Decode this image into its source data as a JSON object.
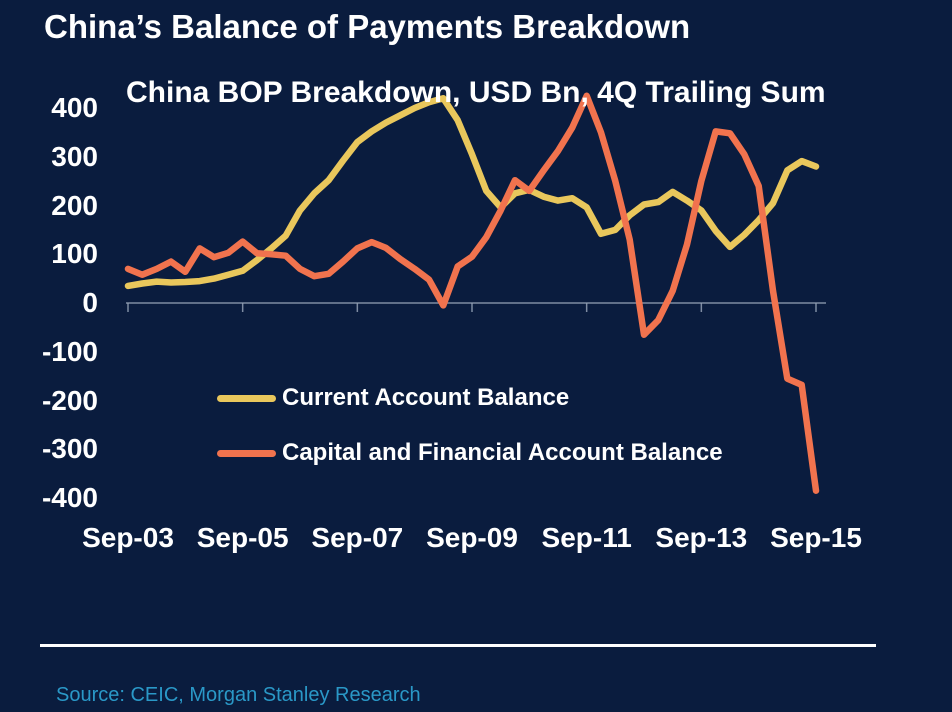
{
  "page": {
    "title": "China’s Balance of Payments Breakdown",
    "source": "Source: CEIC, Morgan Stanley Research",
    "background": "#0a1c3e",
    "accent_source_color": "#2a98c7"
  },
  "chart_data": {
    "type": "line",
    "title": "China BOP Breakdown, USD Bn, 4Q Trailing Sum",
    "xlabel": "",
    "ylabel": "",
    "ylim": [
      -400,
      440
    ],
    "grid": "zero-axis-only",
    "legend_position": "inside-lower-left",
    "axis_color": "#93a0b4",
    "y_ticks": [
      400,
      300,
      200,
      100,
      0,
      -100,
      -200,
      -300,
      -400
    ],
    "x_tick_labels": [
      "Sep-03",
      "Sep-05",
      "Sep-07",
      "Sep-09",
      "Sep-11",
      "Sep-13",
      "Sep-15"
    ],
    "categories": [
      "Sep-03",
      "Dec-03",
      "Mar-04",
      "Jun-04",
      "Sep-04",
      "Dec-04",
      "Mar-05",
      "Jun-05",
      "Sep-05",
      "Dec-05",
      "Mar-06",
      "Jun-06",
      "Sep-06",
      "Dec-06",
      "Mar-07",
      "Jun-07",
      "Sep-07",
      "Dec-07",
      "Mar-08",
      "Jun-08",
      "Sep-08",
      "Dec-08",
      "Mar-09",
      "Jun-09",
      "Sep-09",
      "Dec-09",
      "Mar-10",
      "Jun-10",
      "Sep-10",
      "Dec-10",
      "Mar-11",
      "Jun-11",
      "Sep-11",
      "Dec-11",
      "Mar-12",
      "Jun-12",
      "Sep-12",
      "Dec-12",
      "Mar-13",
      "Jun-13",
      "Sep-13",
      "Dec-13",
      "Mar-14",
      "Jun-14",
      "Sep-14",
      "Dec-14",
      "Mar-15",
      "Jun-15",
      "Sep-15"
    ],
    "series": [
      {
        "name": "Current Account Balance",
        "color": "#e9c75c",
        "values": [
          35,
          40,
          44,
          42,
          43,
          45,
          50,
          58,
          66,
          88,
          112,
          138,
          190,
          225,
          252,
          292,
          330,
          352,
          370,
          385,
          400,
          412,
          420,
          375,
          305,
          230,
          196,
          225,
          232,
          218,
          210,
          215,
          196,
          142,
          150,
          180,
          202,
          207,
          228,
          210,
          190,
          148,
          115,
          140,
          170,
          205,
          272,
          291,
          280
        ]
      },
      {
        "name": "Capital and Financial Account Balance",
        "color": "#f1734e",
        "values": [
          70,
          58,
          70,
          85,
          64,
          112,
          94,
          103,
          126,
          102,
          100,
          97,
          70,
          55,
          60,
          85,
          112,
          125,
          113,
          90,
          70,
          48,
          -5,
          75,
          95,
          135,
          190,
          252,
          230,
          272,
          312,
          360,
          425,
          350,
          250,
          130,
          -65,
          -35,
          25,
          120,
          250,
          352,
          348,
          305,
          240,
          25,
          -155,
          -168,
          -385
        ]
      }
    ]
  }
}
